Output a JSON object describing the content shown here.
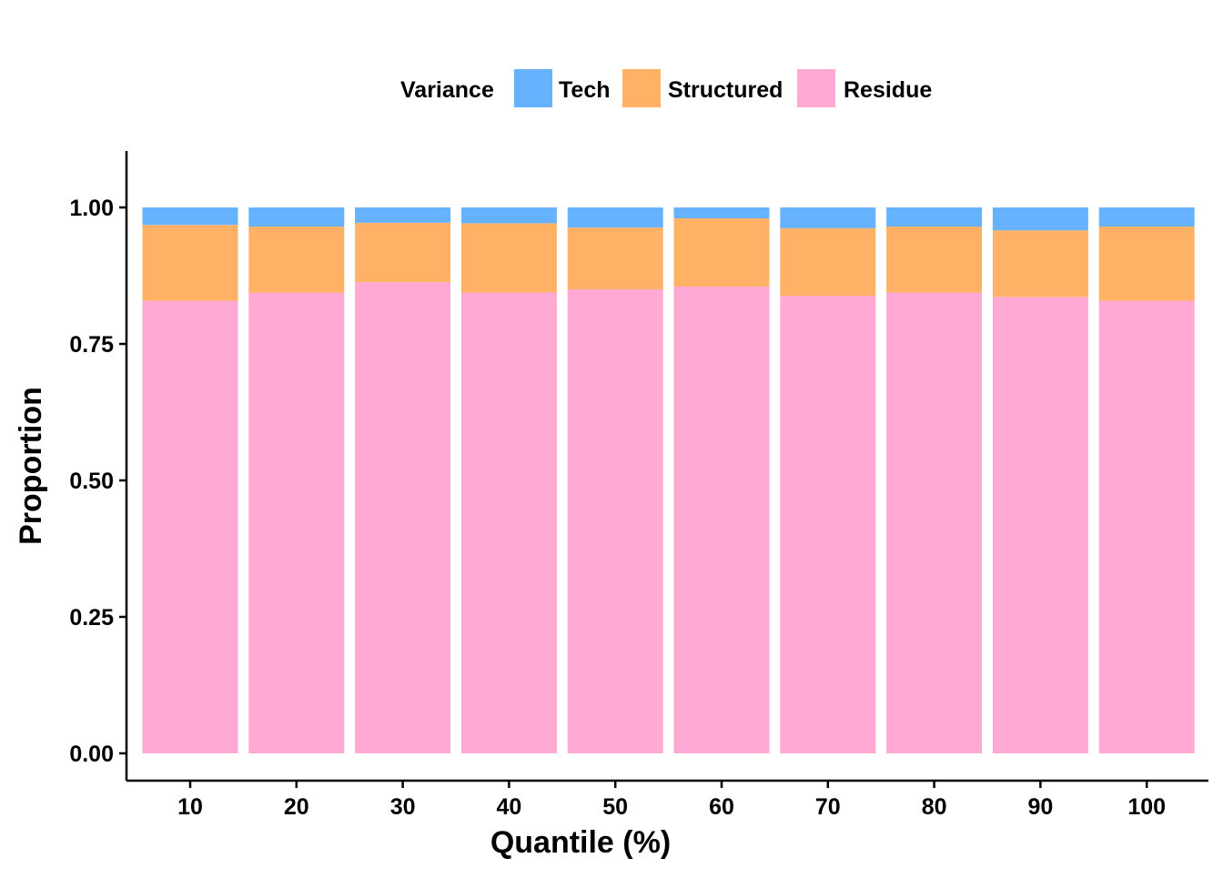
{
  "chart_data": {
    "type": "bar",
    "stacked": true,
    "xlabel": "Quantile (%)",
    "ylabel": "Proportion",
    "categories": [
      "10",
      "20",
      "30",
      "40",
      "50",
      "60",
      "70",
      "80",
      "90",
      "100"
    ],
    "ylim": [
      0,
      1.1
    ],
    "yticks": [
      "0.00",
      "0.25",
      "0.50",
      "0.75",
      "1.00"
    ],
    "legend": {
      "title": "Variance",
      "position": "top",
      "entries": [
        "Tech",
        "Structured",
        "Residue"
      ]
    },
    "series": [
      {
        "name": "Residue",
        "color": "#FFA9D4",
        "values": [
          0.829,
          0.844,
          0.863,
          0.844,
          0.85,
          0.855,
          0.838,
          0.844,
          0.836,
          0.829
        ]
      },
      {
        "name": "Structured",
        "color": "#FFB266",
        "values": [
          0.139,
          0.121,
          0.109,
          0.127,
          0.113,
          0.125,
          0.124,
          0.121,
          0.122,
          0.136
        ]
      },
      {
        "name": "Tech",
        "color": "#66B2FF",
        "values": [
          0.032,
          0.035,
          0.028,
          0.029,
          0.037,
          0.02,
          0.038,
          0.035,
          0.042,
          0.035
        ]
      }
    ],
    "grid": false
  }
}
